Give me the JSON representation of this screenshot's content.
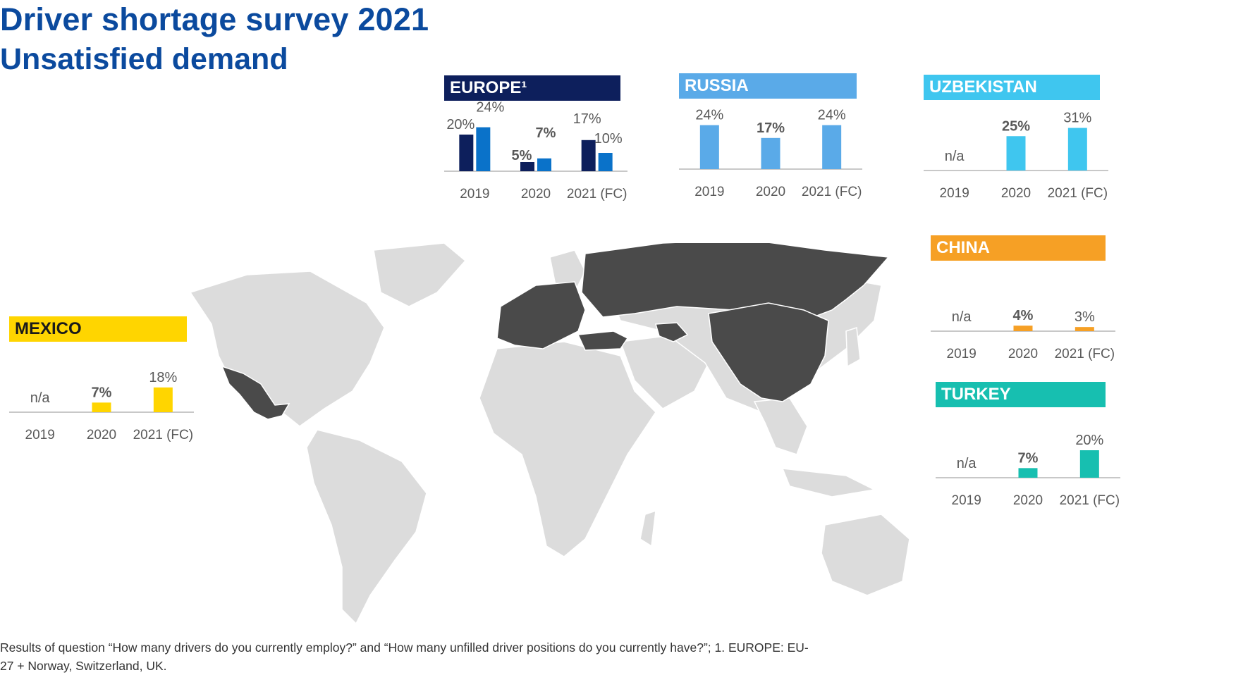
{
  "title": "Driver shortage survey 2021",
  "subtitle": "Unsatisfied demand",
  "footnote": "Results of question “How many drivers do you currently employ?” and “How many unfilled driver positions do you currently have?”; 1. EUROPE: EU-27 + Norway, Switzerland, UK.",
  "map": {
    "highlight_color": "#4a4a4a",
    "land_color": "#dcdcdc",
    "highlighted_regions": [
      "Mexico",
      "Europe",
      "Russia",
      "Turkey",
      "Uzbekistan",
      "China"
    ]
  },
  "chart_data": [
    {
      "type": "bar",
      "region": "EUROPE¹",
      "header_color": "#0d1f5c",
      "header_text_color": "#ffffff",
      "categories": [
        "2019",
        "2020",
        "2021 (FC)"
      ],
      "series": [
        {
          "color": "#0d1f5c",
          "values": [
            20,
            5,
            17
          ],
          "labels": [
            "20%",
            "5%",
            "17%"
          ]
        },
        {
          "color": "#0a72c9",
          "values": [
            24,
            7,
            10
          ],
          "labels": [
            "24%",
            "7%",
            "10%"
          ]
        }
      ],
      "ylim": [
        0,
        30
      ]
    },
    {
      "type": "bar",
      "region": "RUSSIA",
      "header_color": "#5aaae8",
      "header_text_color": "#ffffff",
      "categories": [
        "2019",
        "2020",
        "2021 (FC)"
      ],
      "series": [
        {
          "color": "#5aaae8",
          "values": [
            24,
            17,
            24
          ],
          "labels": [
            "24%",
            "17%",
            "24%"
          ]
        }
      ],
      "ylim": [
        0,
        30
      ]
    },
    {
      "type": "bar",
      "region": "UZBEKISTAN",
      "header_color": "#3fc6ef",
      "header_text_color": "#ffffff",
      "categories": [
        "2019",
        "2020",
        "2021 (FC)"
      ],
      "series": [
        {
          "color": "#3fc6ef",
          "values": [
            null,
            25,
            31
          ],
          "labels": [
            "n/a",
            "25%",
            "31%"
          ]
        }
      ],
      "ylim": [
        0,
        40
      ]
    },
    {
      "type": "bar",
      "region": "CHINA",
      "header_color": "#f6a025",
      "header_text_color": "#ffffff",
      "categories": [
        "2019",
        "2020",
        "2021 (FC)"
      ],
      "series": [
        {
          "color": "#f6a025",
          "values": [
            null,
            4,
            3
          ],
          "labels": [
            "n/a",
            "4%",
            "3%"
          ]
        }
      ],
      "ylim": [
        0,
        40
      ]
    },
    {
      "type": "bar",
      "region": "TURKEY",
      "header_color": "#17bfb0",
      "header_text_color": "#ffffff",
      "categories": [
        "2019",
        "2020",
        "2021 (FC)"
      ],
      "series": [
        {
          "color": "#17bfb0",
          "values": [
            null,
            7,
            20
          ],
          "labels": [
            "n/a",
            "7%",
            "20%"
          ]
        }
      ],
      "ylim": [
        0,
        40
      ]
    },
    {
      "type": "bar",
      "region": "MEXICO",
      "header_color": "#ffd500",
      "header_text_color": "#1a1a1a",
      "categories": [
        "2019",
        "2020",
        "2021 (FC)"
      ],
      "series": [
        {
          "color": "#ffd500",
          "values": [
            null,
            7,
            18
          ],
          "labels": [
            "n/a",
            "7%",
            "18%"
          ]
        }
      ],
      "ylim": [
        0,
        40
      ]
    }
  ]
}
